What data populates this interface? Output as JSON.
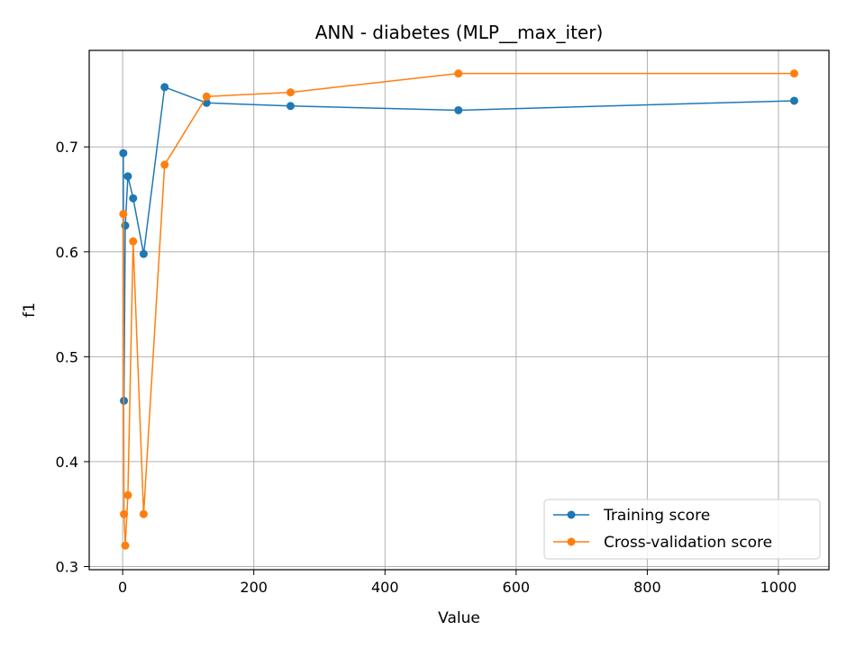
{
  "chart_data": {
    "type": "line",
    "title": "ANN - diabetes (MLP__max_iter)",
    "xlabel": "Value",
    "ylabel": "f1",
    "xlim": [
      -51,
      1077
    ],
    "ylim": [
      0.297,
      0.792
    ],
    "xticks": [
      0,
      200,
      400,
      600,
      800,
      1000
    ],
    "yticks": [
      0.3,
      0.4,
      0.5,
      0.6,
      0.7
    ],
    "grid": true,
    "legend_position": "lower-right",
    "series": [
      {
        "name": "Training score",
        "color": "#1f77b4",
        "x": [
          1,
          2,
          4,
          8,
          16,
          32,
          64,
          128,
          256,
          512,
          1024
        ],
        "y": [
          0.694,
          0.458,
          0.625,
          0.672,
          0.651,
          0.598,
          0.757,
          0.742,
          0.739,
          0.735,
          0.744
        ]
      },
      {
        "name": "Cross-validation score",
        "color": "#ff7f0e",
        "x": [
          1,
          2,
          4,
          8,
          16,
          32,
          64,
          128,
          256,
          512,
          1024
        ],
        "y": [
          0.636,
          0.35,
          0.32,
          0.368,
          0.61,
          0.35,
          0.683,
          0.748,
          0.752,
          0.77,
          0.77
        ]
      }
    ]
  }
}
